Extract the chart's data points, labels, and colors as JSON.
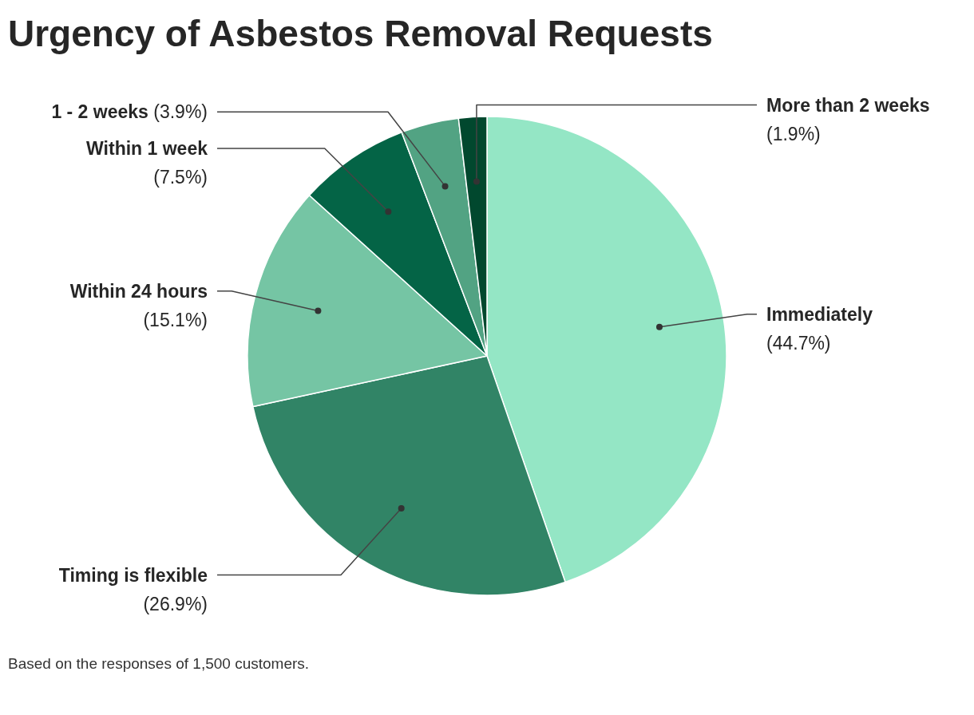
{
  "chart_data": {
    "type": "pie",
    "title": "Urgency of Asbestos Removal Requests",
    "categories": [
      "Immediately",
      "Timing is flexible",
      "Within 24 hours",
      "Within 1 week",
      "1 - 2 weeks",
      "More than 2 weeks"
    ],
    "values": [
      44.7,
      26.9,
      15.1,
      7.5,
      3.9,
      1.9
    ],
    "colors": [
      "#94e6c5",
      "#318466",
      "#75c5a4",
      "#046446",
      "#52a383",
      "#01482e"
    ],
    "value_labels": [
      "(44.7%)",
      "(26.9%)",
      "(15.1%)",
      "(7.5%)",
      "(3.9%)",
      "(1.9%)"
    ],
    "annotations": [
      "Based on the responses of 1,500 customers."
    ]
  }
}
